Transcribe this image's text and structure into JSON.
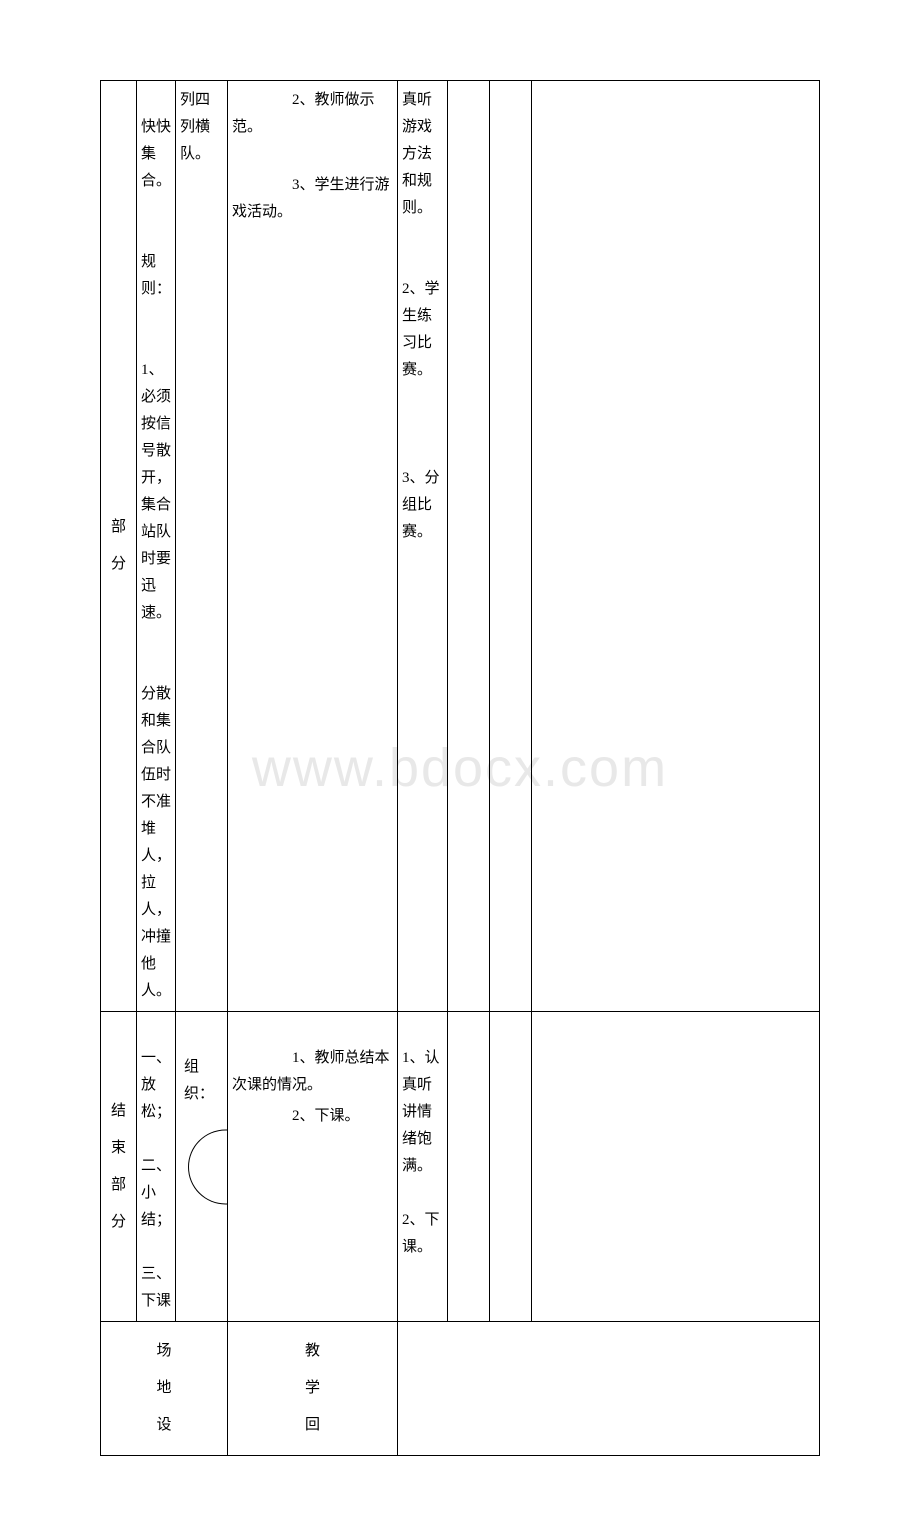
{
  "watermark": "www.bdocx.com",
  "row1": {
    "section_label": [
      "部",
      "分"
    ],
    "col1_text": "　　快快集合。\n\n　　规则：\n\n　　1、必须按信号散开，集合站队时要迅速。\n\n　　分散和集合队伍时不准堆人，拉人，冲撞他人。",
    "col2_text": "列四列横队。",
    "col3_p1": "　　2、教师做示范。",
    "col3_p2": "　　3、学生进行游戏活动。",
    "col4_p1": "真听游戏方法和规则。",
    "col4_p2": "　　2、学生练习比赛。",
    "col4_p3": "　　3、分组比赛。"
  },
  "row2": {
    "section_label": [
      "结",
      "束",
      "部",
      "分"
    ],
    "col1_p1": "　　一、放松；",
    "col1_p2": "　　二、小结；",
    "col1_p3": "　　三、下课",
    "col2_label": "　　组织：",
    "col3_p1": "　　1、教师总结本次课的情况。",
    "col3_p2": "　　2、下课。",
    "col4_p1": "　　1、认真听讲情绪饱满。",
    "col4_p2": "　　2、下课。"
  },
  "row3": {
    "section_label": [
      "场",
      "地",
      "设"
    ],
    "col2_label": [
      "教",
      "学",
      "回"
    ]
  },
  "colors": {
    "border": "#000000",
    "text": "#000000",
    "background": "#ffffff",
    "watermark": "#e8e8e8"
  },
  "typography": {
    "body_fontsize": 15,
    "watermark_fontsize": 54,
    "line_height": 1.8,
    "font_family": "SimSun"
  }
}
